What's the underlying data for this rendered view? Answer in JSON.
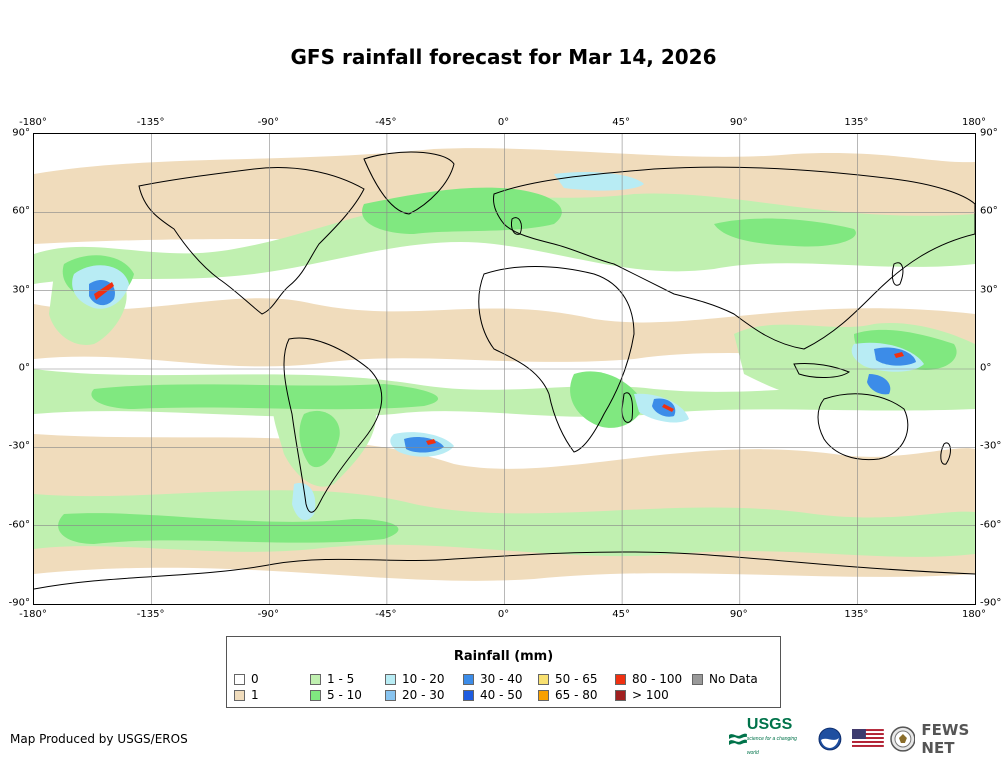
{
  "map": {
    "title": "GFS rainfall forecast for Mar 14, 2026",
    "lon_labels": [
      "-180°",
      "-135°",
      "-90°",
      "-45°",
      "0°",
      "45°",
      "90°",
      "135°",
      "180°"
    ],
    "lat_labels": [
      "90°",
      "60°",
      "30°",
      "0°",
      "-30°",
      "-60°",
      "-90°"
    ]
  },
  "legend": {
    "title": "Rainfall (mm)",
    "items": [
      {
        "label": "0",
        "color": "#ffffff"
      },
      {
        "label": "1",
        "color": "#f0dcbc"
      },
      {
        "label": "1 - 5",
        "color": "#c0f0b0"
      },
      {
        "label": "5 - 10",
        "color": "#80e880"
      },
      {
        "label": "10 - 20",
        "color": "#b8ecf4"
      },
      {
        "label": "20 - 30",
        "color": "#88c4f0"
      },
      {
        "label": "30 - 40",
        "color": "#3c8ce8"
      },
      {
        "label": "40 - 50",
        "color": "#1e5ce0"
      },
      {
        "label": "50 - 65",
        "color": "#f8e070"
      },
      {
        "label": "65 - 80",
        "color": "#f8a000"
      },
      {
        "label": "80 - 100",
        "color": "#f03010"
      },
      {
        "label": "> 100",
        "color": "#a02020"
      },
      {
        "label": "No Data",
        "color": "#999999"
      }
    ]
  },
  "footer": {
    "credit": "Map Produced by USGS/EROS",
    "usgs_logo": "USGS",
    "usgs_tagline": "science for a changing world",
    "fews_logo": "FEWS NET"
  }
}
